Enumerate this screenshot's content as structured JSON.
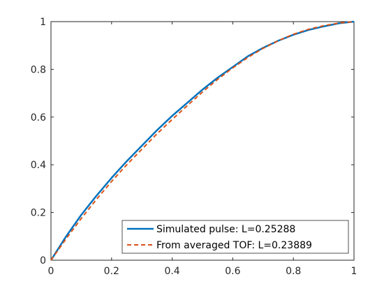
{
  "chart_data": {
    "type": "line",
    "title": "",
    "xlabel": "",
    "ylabel": "",
    "xlim": [
      0,
      1
    ],
    "ylim": [
      0,
      1
    ],
    "grid": false,
    "legend_position": "bottom-right",
    "x_ticks": [
      "0",
      "0.2",
      "0.4",
      "0.6",
      "0.8",
      "1"
    ],
    "y_ticks": [
      "0",
      "0.2",
      "0.4",
      "0.6",
      "0.8",
      "1"
    ],
    "series": [
      {
        "name": "Simulated pulse: L=0.25288",
        "color": "#0072BD",
        "style": "solid",
        "x": [
          0,
          0.05,
          0.1,
          0.15,
          0.2,
          0.25,
          0.3,
          0.35,
          0.4,
          0.45,
          0.5,
          0.55,
          0.6,
          0.65,
          0.7,
          0.75,
          0.8,
          0.85,
          0.9,
          0.95,
          1.0
        ],
        "y": [
          0,
          0.1,
          0.19,
          0.27,
          0.345,
          0.415,
          0.48,
          0.545,
          0.605,
          0.66,
          0.715,
          0.765,
          0.81,
          0.855,
          0.89,
          0.92,
          0.945,
          0.965,
          0.98,
          0.993,
          1.0
        ]
      },
      {
        "name": "From averaged TOF: L=0.23889",
        "color": "#D95319",
        "style": "dashed",
        "x": [
          0,
          0.05,
          0.1,
          0.15,
          0.2,
          0.25,
          0.3,
          0.35,
          0.4,
          0.45,
          0.5,
          0.55,
          0.6,
          0.65,
          0.7,
          0.75,
          0.8,
          0.85,
          0.9,
          0.95,
          1.0
        ],
        "y": [
          0,
          0.09,
          0.175,
          0.255,
          0.33,
          0.4,
          0.465,
          0.53,
          0.59,
          0.648,
          0.705,
          0.758,
          0.806,
          0.85,
          0.888,
          0.92,
          0.947,
          0.968,
          0.983,
          0.994,
          1.0
        ]
      }
    ]
  }
}
